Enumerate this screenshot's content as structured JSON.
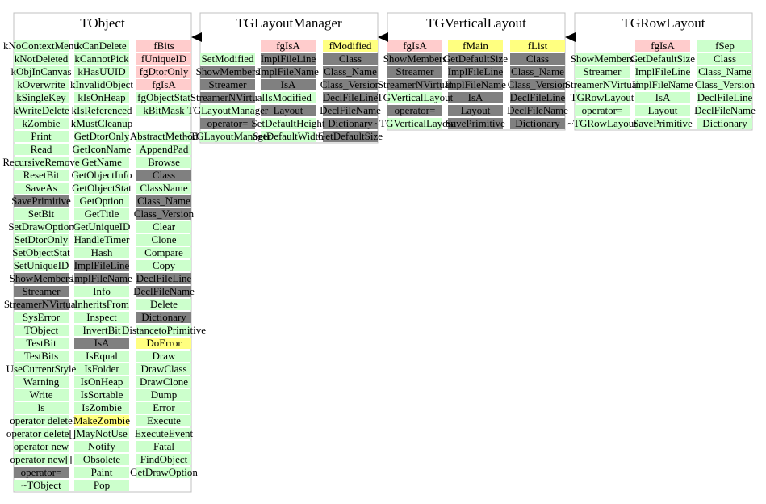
{
  "classes": [
    {
      "name": "TObject",
      "columns": [
        [
          {
            "text": "kNoContextMenu",
            "color": "#ccffcc"
          },
          {
            "text": "kNotDeleted",
            "color": "#ccffcc"
          },
          {
            "text": "kObjInCanvas",
            "color": "#ccffcc"
          },
          {
            "text": "kOverwrite",
            "color": "#ccffcc"
          },
          {
            "text": "kSingleKey",
            "color": "#ccffcc"
          },
          {
            "text": "kWriteDelete",
            "color": "#ccffcc"
          },
          {
            "text": "kZombie",
            "color": "#ccffcc"
          },
          {
            "text": "Print",
            "color": "#ccffcc"
          },
          {
            "text": "Read",
            "color": "#ccffcc"
          },
          {
            "text": "RecursiveRemove",
            "color": "#ccffcc"
          },
          {
            "text": "ResetBit",
            "color": "#ccffcc"
          },
          {
            "text": "SaveAs",
            "color": "#ccffcc"
          },
          {
            "text": "SavePrimitive",
            "color": "#808080"
          },
          {
            "text": "SetBit",
            "color": "#ccffcc"
          },
          {
            "text": "SetDrawOption",
            "color": "#ccffcc"
          },
          {
            "text": "SetDtorOnly",
            "color": "#ccffcc"
          },
          {
            "text": "SetObjectStat",
            "color": "#ccffcc"
          },
          {
            "text": "SetUniqueID",
            "color": "#ccffcc"
          },
          {
            "text": "ShowMembers",
            "color": "#808080"
          },
          {
            "text": "Streamer",
            "color": "#808080"
          },
          {
            "text": "StreamerNVirtual",
            "color": "#808080"
          },
          {
            "text": "SysError",
            "color": "#ccffcc"
          },
          {
            "text": "TObject",
            "color": "#ccffcc"
          },
          {
            "text": "TestBit",
            "color": "#ccffcc"
          },
          {
            "text": "TestBits",
            "color": "#ccffcc"
          },
          {
            "text": "UseCurrentStyle",
            "color": "#ccffcc"
          },
          {
            "text": "Warning",
            "color": "#ccffcc"
          },
          {
            "text": "Write",
            "color": "#ccffcc"
          },
          {
            "text": "ls",
            "color": "#ccffcc"
          },
          {
            "text": "operator delete",
            "color": "#ccffcc"
          },
          {
            "text": "operator delete[]",
            "color": "#ccffcc"
          },
          {
            "text": "operator new",
            "color": "#ccffcc"
          },
          {
            "text": "operator new[]",
            "color": "#ccffcc"
          },
          {
            "text": "operator=",
            "color": "#808080"
          },
          {
            "text": "~TObject",
            "color": "#ccffcc"
          }
        ],
        [
          {
            "text": "kCanDelete",
            "color": "#ccffcc"
          },
          {
            "text": "kCannotPick",
            "color": "#ccffcc"
          },
          {
            "text": "kHasUUID",
            "color": "#ccffcc"
          },
          {
            "text": "kInvalidObject",
            "color": "#ccffcc"
          },
          {
            "text": "kIsOnHeap",
            "color": "#ccffcc"
          },
          {
            "text": "kIsReferenced",
            "color": "#ccffcc"
          },
          {
            "text": "kMustCleanup",
            "color": "#ccffcc"
          },
          {
            "text": "GetDtorOnly",
            "color": "#ccffcc"
          },
          {
            "text": "GetIconName",
            "color": "#ccffcc"
          },
          {
            "text": "GetName",
            "color": "#ccffcc"
          },
          {
            "text": "GetObjectInfo",
            "color": "#ccffcc"
          },
          {
            "text": "GetObjectStat",
            "color": "#ccffcc"
          },
          {
            "text": "GetOption",
            "color": "#ccffcc"
          },
          {
            "text": "GetTitle",
            "color": "#ccffcc"
          },
          {
            "text": "GetUniqueID",
            "color": "#ccffcc"
          },
          {
            "text": "HandleTimer",
            "color": "#ccffcc"
          },
          {
            "text": "Hash",
            "color": "#ccffcc"
          },
          {
            "text": "ImplFileLine",
            "color": "#808080"
          },
          {
            "text": "ImplFileName",
            "color": "#808080"
          },
          {
            "text": "Info",
            "color": "#ccffcc"
          },
          {
            "text": "InheritsFrom",
            "color": "#ccffcc"
          },
          {
            "text": "Inspect",
            "color": "#ccffcc"
          },
          {
            "text": "InvertBit",
            "color": "#ccffcc"
          },
          {
            "text": "IsA",
            "color": "#808080"
          },
          {
            "text": "IsEqual",
            "color": "#ccffcc"
          },
          {
            "text": "IsFolder",
            "color": "#ccffcc"
          },
          {
            "text": "IsOnHeap",
            "color": "#ccffcc"
          },
          {
            "text": "IsSortable",
            "color": "#ccffcc"
          },
          {
            "text": "IsZombie",
            "color": "#ccffcc"
          },
          {
            "text": "MakeZombie",
            "color": "#ffff80"
          },
          {
            "text": "MayNotUse",
            "color": "#ccffcc"
          },
          {
            "text": "Notify",
            "color": "#ccffcc"
          },
          {
            "text": "Obsolete",
            "color": "#ccffcc"
          },
          {
            "text": "Paint",
            "color": "#ccffcc"
          },
          {
            "text": "Pop",
            "color": "#ccffcc"
          }
        ],
        [
          {
            "text": "fBits",
            "color": "#ffcccc"
          },
          {
            "text": "fUniqueID",
            "color": "#ffcccc"
          },
          {
            "text": "fgDtorOnly",
            "color": "#ffcccc"
          },
          {
            "text": "fgIsA",
            "color": "#ffcccc"
          },
          {
            "text": "fgObjectStat",
            "color": "#ccffcc"
          },
          {
            "text": "kBitMask",
            "color": "#ccffcc"
          },
          null,
          {
            "text": "AbstractMethod",
            "color": "#ccffcc"
          },
          {
            "text": "AppendPad",
            "color": "#ccffcc"
          },
          {
            "text": "Browse",
            "color": "#ccffcc"
          },
          {
            "text": "Class",
            "color": "#808080"
          },
          {
            "text": "ClassName",
            "color": "#ccffcc"
          },
          {
            "text": "Class_Name",
            "color": "#808080"
          },
          {
            "text": "Class_Version",
            "color": "#808080"
          },
          {
            "text": "Clear",
            "color": "#ccffcc"
          },
          {
            "text": "Clone",
            "color": "#ccffcc"
          },
          {
            "text": "Compare",
            "color": "#ccffcc"
          },
          {
            "text": "Copy",
            "color": "#ccffcc"
          },
          {
            "text": "DeclFileLine",
            "color": "#808080"
          },
          {
            "text": "DeclFileName",
            "color": "#808080"
          },
          {
            "text": "Delete",
            "color": "#ccffcc"
          },
          {
            "text": "Dictionary",
            "color": "#808080"
          },
          {
            "text": "DistancetoPrimitive",
            "color": "#ccffcc"
          },
          {
            "text": "DoError",
            "color": "#ffff80"
          },
          {
            "text": "Draw",
            "color": "#ccffcc"
          },
          {
            "text": "DrawClass",
            "color": "#ccffcc"
          },
          {
            "text": "DrawClone",
            "color": "#ccffcc"
          },
          {
            "text": "Dump",
            "color": "#ccffcc"
          },
          {
            "text": "Error",
            "color": "#ccffcc"
          },
          {
            "text": "Execute",
            "color": "#ccffcc"
          },
          {
            "text": "ExecuteEvent",
            "color": "#ccffcc"
          },
          {
            "text": "Fatal",
            "color": "#ccffcc"
          },
          {
            "text": "FindObject",
            "color": "#ccffcc"
          },
          {
            "text": "GetDrawOption",
            "color": "#ccffcc"
          }
        ]
      ]
    },
    {
      "name": "TGLayoutManager",
      "columns": [
        [
          null,
          {
            "text": "SetModified",
            "color": "#ccffcc"
          },
          {
            "text": "ShowMembers",
            "color": "#808080"
          },
          {
            "text": "Streamer",
            "color": "#808080"
          },
          {
            "text": "StreamerNVirtual",
            "color": "#808080"
          },
          {
            "text": "TGLayoutManager",
            "color": "#ccffcc"
          },
          {
            "text": "operator=",
            "color": "#808080"
          },
          {
            "text": "~TGLayoutManager",
            "color": "#ccffcc"
          }
        ],
        [
          {
            "text": "fgIsA",
            "color": "#ffcccc"
          },
          {
            "text": "ImplFileLine",
            "color": "#808080"
          },
          {
            "text": "ImplFileName",
            "color": "#808080"
          },
          {
            "text": "IsA",
            "color": "#808080"
          },
          {
            "text": "IsModified",
            "color": "#ccffcc"
          },
          {
            "text": "Layout",
            "color": "#808080"
          },
          {
            "text": "SetDefaultHeight",
            "color": "#ccffcc"
          },
          {
            "text": "SetDefaultWidth",
            "color": "#ccffcc"
          }
        ],
        [
          {
            "text": "fModified",
            "color": "#ffff80"
          },
          {
            "text": "Class",
            "color": "#808080"
          },
          {
            "text": "Class_Name",
            "color": "#808080"
          },
          {
            "text": "Class_Version",
            "color": "#808080"
          },
          {
            "text": "DeclFileLine",
            "color": "#808080"
          },
          {
            "text": "DeclFileName",
            "color": "#808080"
          },
          {
            "text": "Dictionary",
            "color": "#808080"
          },
          {
            "text": "GetDefaultSize",
            "color": "#808080"
          }
        ]
      ]
    },
    {
      "name": "TGVerticalLayout",
      "columns": [
        [
          {
            "text": "fgIsA",
            "color": "#ffcccc"
          },
          {
            "text": "ShowMembers",
            "color": "#808080"
          },
          {
            "text": "Streamer",
            "color": "#808080"
          },
          {
            "text": "StreamerNVirtual",
            "color": "#808080"
          },
          {
            "text": "TGVerticalLayout",
            "color": "#ccffcc"
          },
          {
            "text": "operator=",
            "color": "#808080"
          },
          {
            "text": "~TGVerticalLayout",
            "color": "#ccffcc"
          }
        ],
        [
          {
            "text": "fMain",
            "color": "#ffff80"
          },
          {
            "text": "GetDefaultSize",
            "color": "#808080"
          },
          {
            "text": "ImplFileLine",
            "color": "#808080"
          },
          {
            "text": "ImplFileName",
            "color": "#808080"
          },
          {
            "text": "IsA",
            "color": "#808080"
          },
          {
            "text": "Layout",
            "color": "#808080"
          },
          {
            "text": "SavePrimitive",
            "color": "#808080"
          }
        ],
        [
          {
            "text": "fList",
            "color": "#ffff80"
          },
          {
            "text": "Class",
            "color": "#808080"
          },
          {
            "text": "Class_Name",
            "color": "#808080"
          },
          {
            "text": "Class_Version",
            "color": "#808080"
          },
          {
            "text": "DeclFileLine",
            "color": "#808080"
          },
          {
            "text": "DeclFileName",
            "color": "#808080"
          },
          {
            "text": "Dictionary",
            "color": "#808080"
          }
        ]
      ]
    },
    {
      "name": "TGRowLayout",
      "columns": [
        [
          null,
          {
            "text": "ShowMembers",
            "color": "#ccffcc"
          },
          {
            "text": "Streamer",
            "color": "#ccffcc"
          },
          {
            "text": "StreamerNVirtual",
            "color": "#ccffcc"
          },
          {
            "text": "TGRowLayout",
            "color": "#ccffcc"
          },
          {
            "text": "operator=",
            "color": "#ccffcc"
          },
          {
            "text": "~TGRowLayout",
            "color": "#ccffcc"
          }
        ],
        [
          {
            "text": "fgIsA",
            "color": "#ffcccc"
          },
          {
            "text": "GetDefaultSize",
            "color": "#ccffcc"
          },
          {
            "text": "ImplFileLine",
            "color": "#ccffcc"
          },
          {
            "text": "ImplFileName",
            "color": "#ccffcc"
          },
          {
            "text": "IsA",
            "color": "#ccffcc"
          },
          {
            "text": "Layout",
            "color": "#ccffcc"
          },
          {
            "text": "SavePrimitive",
            "color": "#ccffcc"
          }
        ],
        [
          {
            "text": "fSep",
            "color": "#ccffcc"
          },
          {
            "text": "Class",
            "color": "#ccffcc"
          },
          {
            "text": "Class_Name",
            "color": "#ccffcc"
          },
          {
            "text": "Class_Version",
            "color": "#ccffcc"
          },
          {
            "text": "DeclFileLine",
            "color": "#ccffcc"
          },
          {
            "text": "DeclFileName",
            "color": "#ccffcc"
          },
          {
            "text": "Dictionary",
            "color": "#ccffcc"
          }
        ]
      ]
    }
  ]
}
